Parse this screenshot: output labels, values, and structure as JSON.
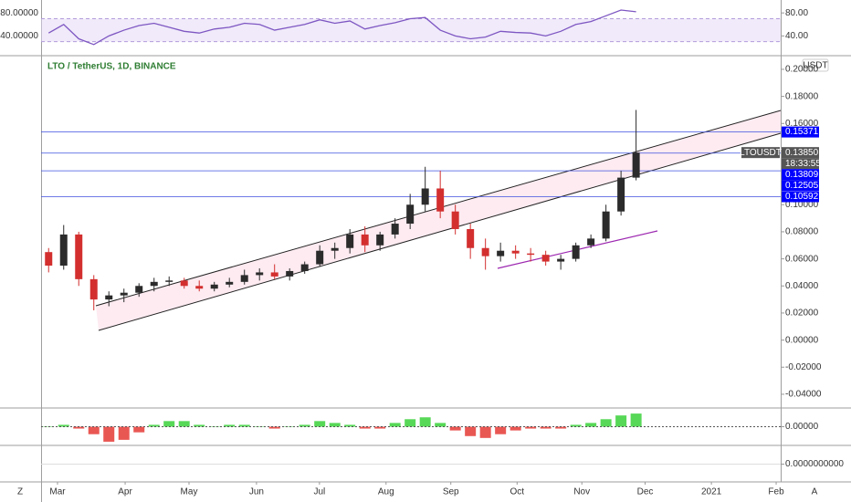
{
  "chart_data": [
    {
      "type": "line",
      "pane": "rsi",
      "color": "#7e57c2",
      "band": [
        30,
        70
      ],
      "band_color": "#e1d5f5",
      "values": [
        45,
        60,
        35,
        25,
        40,
        50,
        58,
        62,
        55,
        48,
        45,
        52,
        55,
        62,
        60,
        50,
        55,
        60,
        68,
        62,
        66,
        52,
        58,
        63,
        70,
        72,
        50,
        40,
        35,
        38,
        48,
        46,
        45,
        40,
        48,
        60,
        65,
        75,
        85,
        82
      ],
      "ylim": [
        10.4,
        99.3
      ],
      "yticks": [
        {
          "value": 80,
          "label": "80.00"
        },
        {
          "value": 40,
          "label": "40.00"
        }
      ],
      "left_yticks": [
        {
          "value": 80,
          "label": "80.00000"
        },
        {
          "value": 40,
          "label": "40.00000"
        }
      ]
    },
    {
      "type": "candlestick",
      "title": "LTO / TetherUS, 1D, BINANCE",
      "currency": "USDT",
      "up_color": "#2b2b2b",
      "down_color": "#d32f2f",
      "open": [
        0.065,
        0.055,
        0.078,
        0.045,
        0.03,
        0.033,
        0.035,
        0.04,
        0.043,
        0.044,
        0.04,
        0.038,
        0.041,
        0.043,
        0.048,
        0.05,
        0.047,
        0.051,
        0.056,
        0.066,
        0.068,
        0.078,
        0.07,
        0.078,
        0.086,
        0.1,
        0.112,
        0.095,
        0.082,
        0.068,
        0.062,
        0.066,
        0.064,
        0.063,
        0.058,
        0.06,
        0.07,
        0.075,
        0.095,
        0.12
      ],
      "high": [
        0.068,
        0.085,
        0.08,
        0.048,
        0.036,
        0.038,
        0.042,
        0.046,
        0.047,
        0.046,
        0.044,
        0.043,
        0.046,
        0.052,
        0.053,
        0.056,
        0.053,
        0.058,
        0.07,
        0.072,
        0.082,
        0.084,
        0.08,
        0.09,
        0.108,
        0.128,
        0.125,
        0.1,
        0.086,
        0.075,
        0.072,
        0.07,
        0.068,
        0.066,
        0.063,
        0.072,
        0.078,
        0.1,
        0.125,
        0.17
      ],
      "low": [
        0.05,
        0.052,
        0.04,
        0.022,
        0.025,
        0.028,
        0.032,
        0.036,
        0.04,
        0.038,
        0.036,
        0.036,
        0.039,
        0.041,
        0.044,
        0.045,
        0.044,
        0.049,
        0.054,
        0.06,
        0.064,
        0.065,
        0.066,
        0.075,
        0.082,
        0.095,
        0.09,
        0.078,
        0.06,
        0.052,
        0.058,
        0.06,
        0.058,
        0.055,
        0.052,
        0.058,
        0.068,
        0.073,
        0.092,
        0.118
      ],
      "close": [
        0.055,
        0.078,
        0.045,
        0.03,
        0.033,
        0.035,
        0.04,
        0.043,
        0.044,
        0.04,
        0.038,
        0.041,
        0.043,
        0.048,
        0.05,
        0.047,
        0.051,
        0.056,
        0.066,
        0.068,
        0.078,
        0.07,
        0.078,
        0.086,
        0.1,
        0.112,
        0.095,
        0.082,
        0.068,
        0.062,
        0.066,
        0.064,
        0.063,
        0.058,
        0.06,
        0.07,
        0.075,
        0.095,
        0.12,
        0.1385
      ],
      "xlim": [
        -0.5,
        48.6
      ],
      "xticks": [
        {
          "value": 0.59,
          "label": "Mar"
        },
        {
          "value": 5.08,
          "label": "Apr"
        },
        {
          "value": 9.32,
          "label": "May"
        },
        {
          "value": 13.8,
          "label": "Jun"
        },
        {
          "value": 17.98,
          "label": "Jul"
        },
        {
          "value": 22.4,
          "label": "Aug"
        },
        {
          "value": 26.7,
          "label": "Sep"
        },
        {
          "value": 31.1,
          "label": "Oct"
        },
        {
          "value": 35.4,
          "label": "Nov"
        },
        {
          "value": 39.6,
          "label": "Dec"
        },
        {
          "value": 44.0,
          "label": "2021"
        },
        {
          "value": 48.3,
          "label": "Feb"
        }
      ],
      "ylim": [
        -0.0488,
        0.2094
      ],
      "yticks": [
        {
          "value": 0.2,
          "label": "0.20000"
        },
        {
          "value": 0.18,
          "label": "0.18000"
        },
        {
          "value": 0.16,
          "label": "0.16000"
        },
        {
          "value": 0.1,
          "label": "0.10000"
        },
        {
          "value": 0.08,
          "label": "0.08000"
        },
        {
          "value": 0.06,
          "label": "0.06000"
        },
        {
          "value": 0.04,
          "label": "0.04000"
        },
        {
          "value": 0.02,
          "label": "0.02000"
        },
        {
          "value": 0,
          "label": "0.00000"
        },
        {
          "value": -0.02,
          "label": "-0.02000"
        },
        {
          "value": -0.04,
          "label": "-0.04000"
        }
      ],
      "levels": [
        {
          "value": 0.15371,
          "label": "0.15371"
        },
        {
          "value": 0.13809,
          "label": "0.13809"
        },
        {
          "value": 0.12505,
          "label": "0.12505"
        },
        {
          "value": 0.10592,
          "label": "0.10592"
        }
      ],
      "level_color": "#3f51e0",
      "last_price": {
        "value": 0.1385,
        "label": "0.13850",
        "symbol": "LTOUSDT",
        "countdown": "18:33:55"
      }
    },
    {
      "type": "bar",
      "pane": "momentum",
      "up_color": "#3ad13a",
      "down_color": "#e53935",
      "values": [
        0.0,
        0.001,
        -0.001,
        -0.004,
        -0.008,
        -0.007,
        -0.003,
        0.001,
        0.003,
        0.003,
        0.001,
        0.0,
        0.001,
        0.001,
        0.0,
        -0.001,
        0.0,
        0.001,
        0.003,
        0.002,
        0.001,
        -0.001,
        -0.001,
        0.002,
        0.004,
        0.005,
        0.002,
        -0.002,
        -0.005,
        -0.006,
        -0.004,
        -0.002,
        -0.001,
        -0.001,
        -0.001,
        0.001,
        0.002,
        0.004,
        0.006,
        0.007
      ],
      "ylim": [
        -0.009,
        0.009
      ],
      "yticks": [
        {
          "value": 0,
          "label": "0.00000"
        }
      ]
    },
    {
      "type": "line",
      "pane": "oscillator",
      "values": [],
      "color": "#4fc3f7",
      "ylim": [
        -1,
        1
      ],
      "yticks": [
        {
          "value": 0,
          "label": "0.0000000000"
        }
      ]
    }
  ],
  "toolbar": {
    "left": "Z",
    "right": "A"
  }
}
